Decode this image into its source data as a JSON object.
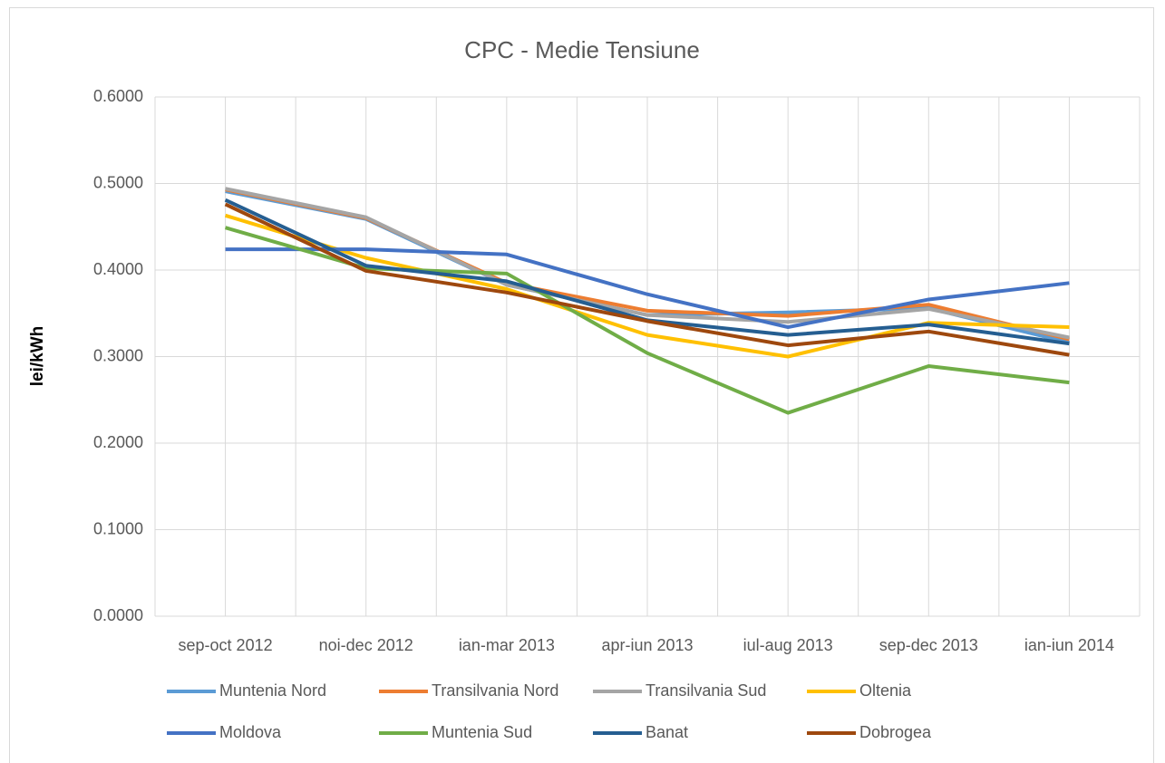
{
  "chart_data": {
    "type": "line",
    "title": "CPC - Medie Tensiune",
    "y_label": "lei/kWh",
    "categories": [
      "sep-oct 2012",
      "noi-dec 2012",
      "ian-mar 2013",
      "apr-iun 2013",
      "iul-aug 2013",
      "sep-dec 2013",
      "ian-iun 2014"
    ],
    "series": [
      {
        "name": "Muntenia Nord",
        "color": "#5b9bd5",
        "values": [
          0.491,
          0.459,
          0.383,
          0.348,
          0.351,
          0.356,
          0.316
        ]
      },
      {
        "name": "Transilvania Nord",
        "color": "#ed7d31",
        "values": [
          0.493,
          0.46,
          0.385,
          0.353,
          0.347,
          0.36,
          0.32
        ]
      },
      {
        "name": "Transilvania Sud",
        "color": "#a5a5a5",
        "values": [
          0.494,
          0.461,
          0.383,
          0.348,
          0.34,
          0.355,
          0.322
        ]
      },
      {
        "name": "Oltenia",
        "color": "#ffc000",
        "values": [
          0.463,
          0.414,
          0.378,
          0.325,
          0.3,
          0.339,
          0.334
        ]
      },
      {
        "name": "Moldova",
        "color": "#4472c4",
        "values": [
          0.424,
          0.424,
          0.418,
          0.372,
          0.334,
          0.366,
          0.385
        ]
      },
      {
        "name": "Muntenia Sud",
        "color": "#70ad47",
        "values": [
          0.449,
          0.402,
          0.396,
          0.304,
          0.235,
          0.289,
          0.27
        ]
      },
      {
        "name": "Banat",
        "color": "#255e91",
        "values": [
          0.481,
          0.405,
          0.387,
          0.342,
          0.325,
          0.337,
          0.315
        ]
      },
      {
        "name": "Dobrogea",
        "color": "#9e480e",
        "values": [
          0.476,
          0.399,
          0.374,
          0.341,
          0.313,
          0.329,
          0.302
        ]
      }
    ],
    "ylim": [
      0,
      0.6
    ],
    "yticks": [
      {
        "value": 0,
        "label": "0.0000"
      },
      {
        "value": 0.1,
        "label": "0.1000"
      },
      {
        "value": 0.2,
        "label": "0.2000"
      },
      {
        "value": 0.3,
        "label": "0.3000"
      },
      {
        "value": 0.4,
        "label": "0.4000"
      },
      {
        "value": 0.5,
        "label": "0.5000"
      },
      {
        "value": 0.6,
        "label": "0.6000"
      }
    ],
    "grid": true,
    "legend": "bottom"
  }
}
